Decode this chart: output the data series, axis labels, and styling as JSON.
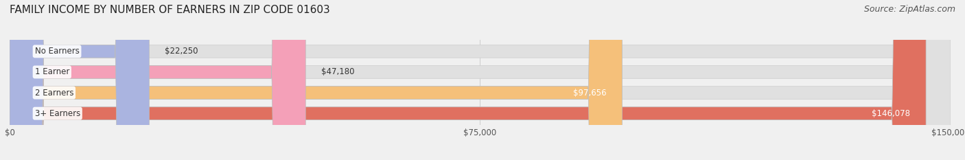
{
  "title": "FAMILY INCOME BY NUMBER OF EARNERS IN ZIP CODE 01603",
  "source": "Source: ZipAtlas.com",
  "categories": [
    "No Earners",
    "1 Earner",
    "2 Earners",
    "3+ Earners"
  ],
  "values": [
    22250,
    47180,
    97656,
    146078
  ],
  "bar_colors": [
    "#aab4e0",
    "#f4a0b8",
    "#f5c07a",
    "#e07060"
  ],
  "value_labels": [
    "$22,250",
    "$47,180",
    "$97,656",
    "$146,078"
  ],
  "xlim": [
    0,
    150000
  ],
  "xticks": [
    0,
    75000,
    150000
  ],
  "xticklabels": [
    "$0",
    "$75,000",
    "$150,000"
  ],
  "background_color": "#f0f0f0",
  "bar_bg_color": "#e0e0e0",
  "title_fontsize": 11,
  "source_fontsize": 9,
  "bar_height": 0.62,
  "figsize": [
    14.06,
    2.33
  ],
  "dpi": 100
}
